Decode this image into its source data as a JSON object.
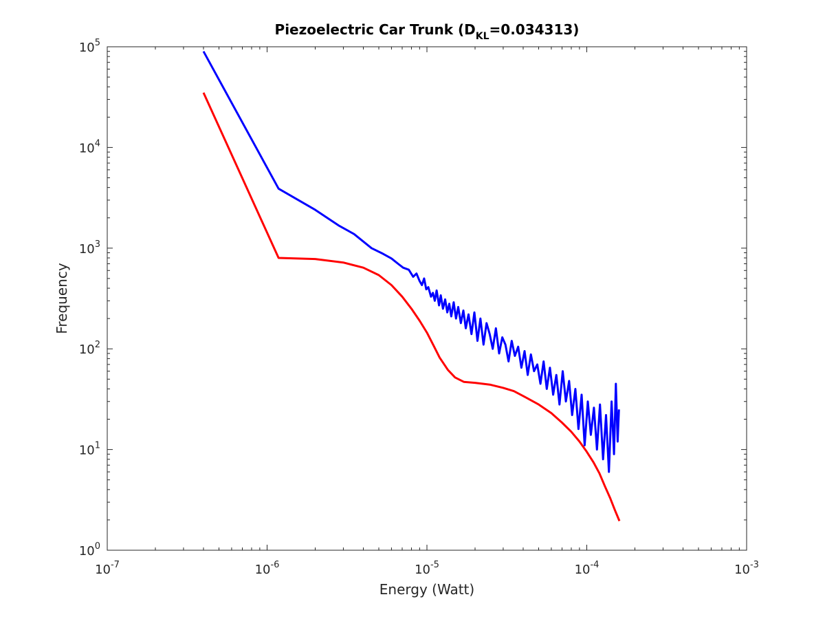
{
  "chart_data": {
    "type": "line",
    "title": {
      "prefix": "Piezoelectric Car Trunk (D",
      "subscript": "KL",
      "suffix": "=0.034313)"
    },
    "xlabel": "Energy (Watt)",
    "ylabel": "Frequency",
    "xscale": "log",
    "yscale": "log",
    "xlim": [
      1e-07,
      0.001
    ],
    "ylim": [
      1,
      100000
    ],
    "grid": false,
    "legend": "none",
    "xticks": [
      {
        "base": "10",
        "exp": "-7",
        "value": 1e-07
      },
      {
        "base": "10",
        "exp": "-6",
        "value": 1e-06
      },
      {
        "base": "10",
        "exp": "-5",
        "value": 1e-05
      },
      {
        "base": "10",
        "exp": "-4",
        "value": 0.0001
      },
      {
        "base": "10",
        "exp": "-3",
        "value": 0.001
      }
    ],
    "yticks": [
      {
        "base": "10",
        "exp": "0",
        "value": 1
      },
      {
        "base": "10",
        "exp": "1",
        "value": 10
      },
      {
        "base": "10",
        "exp": "2",
        "value": 100
      },
      {
        "base": "10",
        "exp": "3",
        "value": 1000
      },
      {
        "base": "10",
        "exp": "4",
        "value": 10000
      },
      {
        "base": "10",
        "exp": "5",
        "value": 100000
      }
    ],
    "series": [
      {
        "color": "#0000ff",
        "x": [
          4e-07,
          1.18e-06,
          2e-06,
          2.8e-06,
          3.5e-06,
          4.5e-06,
          5.3e-06,
          6e-06,
          6.6e-06,
          7.1e-06,
          7.7e-06,
          8.2e-06,
          8.6e-06,
          9e-06,
          9.3e-06,
          9.6e-06,
          9.9e-06,
          1.02e-05,
          1.06e-05,
          1.09e-05,
          1.12e-05,
          1.15e-05,
          1.19e-05,
          1.22e-05,
          1.26e-05,
          1.3e-05,
          1.34e-05,
          1.38e-05,
          1.42e-05,
          1.47e-05,
          1.52e-05,
          1.57e-05,
          1.63e-05,
          1.69e-05,
          1.75e-05,
          1.82e-05,
          1.9e-05,
          1.98e-05,
          2.07e-05,
          2.16e-05,
          2.26e-05,
          2.36e-05,
          2.47e-05,
          2.58e-05,
          2.7e-05,
          2.83e-05,
          2.96e-05,
          3.1e-05,
          3.24e-05,
          3.39e-05,
          3.55e-05,
          3.72e-05,
          3.9e-05,
          4.08e-05,
          4.27e-05,
          4.47e-05,
          4.68e-05,
          4.9e-05,
          5.13e-05,
          5.37e-05,
          5.62e-05,
          5.88e-05,
          6.16e-05,
          6.45e-05,
          6.75e-05,
          7.07e-05,
          7.4e-05,
          7.75e-05,
          8.1e-05,
          8.48e-05,
          8.87e-05,
          9.28e-05,
          9.7e-05,
          0.0001015,
          0.000106,
          0.0001108,
          0.0001158,
          0.000121,
          0.0001265,
          0.000132,
          0.0001375,
          0.000143,
          0.000148,
          0.000152,
          0.000156,
          0.000159
        ],
        "y": [
          90000,
          3900,
          2400,
          1680,
          1380,
          1000,
          880,
          790,
          700,
          640,
          610,
          520,
          560,
          470,
          430,
          500,
          390,
          410,
          330,
          360,
          300,
          380,
          270,
          340,
          250,
          310,
          230,
          280,
          210,
          290,
          200,
          260,
          180,
          240,
          160,
          220,
          140,
          230,
          120,
          200,
          110,
          180,
          140,
          100,
          160,
          90,
          130,
          110,
          75,
          120,
          85,
          105,
          65,
          95,
          55,
          88,
          60,
          70,
          45,
          75,
          40,
          65,
          35,
          55,
          28,
          60,
          30,
          48,
          22,
          40,
          16,
          35,
          11,
          30,
          14,
          26,
          10,
          28,
          8,
          22,
          6,
          30,
          9,
          45,
          12,
          25
        ]
      },
      {
        "color": "#ff0000",
        "x": [
          4e-07,
          1.18e-06,
          2e-06,
          3e-06,
          4e-06,
          5e-06,
          6e-06,
          7e-06,
          8e-06,
          9e-06,
          1e-05,
          1.1e-05,
          1.2e-05,
          1.35e-05,
          1.5e-05,
          1.7e-05,
          2e-05,
          2.5e-05,
          3e-05,
          3.5e-05,
          4e-05,
          5e-05,
          6e-05,
          7e-05,
          8e-05,
          9e-05,
          0.0001,
          0.00011,
          0.00012,
          0.00013,
          0.00014,
          0.00015,
          0.00016
        ],
        "y": [
          35000,
          800,
          780,
          720,
          640,
          540,
          430,
          330,
          250,
          190,
          145,
          108,
          82,
          62,
          52,
          47,
          46,
          44,
          41,
          38,
          34,
          28,
          23,
          18.5,
          15,
          12,
          9.5,
          7.5,
          5.8,
          4.3,
          3.3,
          2.5,
          1.95
        ]
      }
    ]
  }
}
